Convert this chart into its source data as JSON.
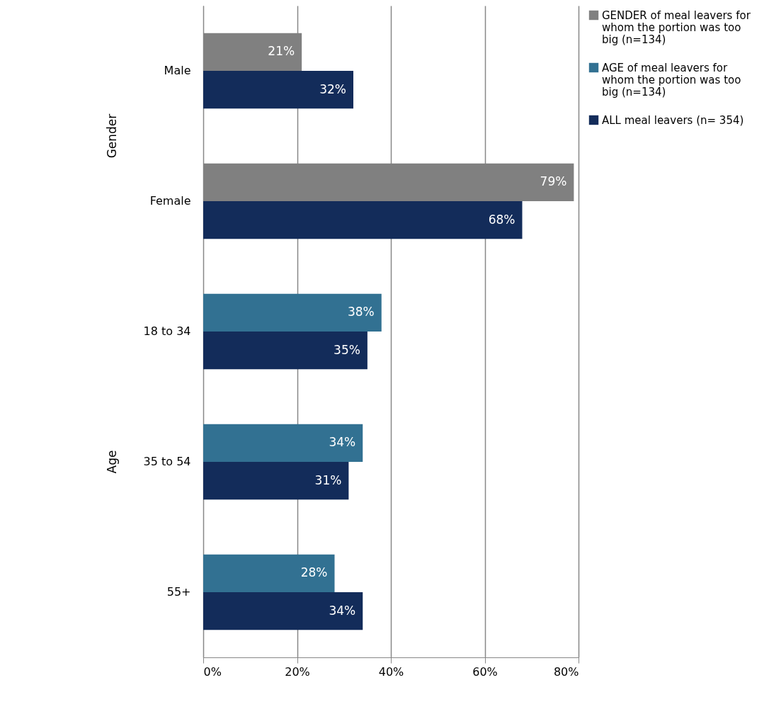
{
  "chart_data": {
    "type": "bar",
    "orientation": "horizontal",
    "categories": [
      "Male",
      "Female",
      "18 to 34",
      "35 to 54",
      "55+"
    ],
    "series": [
      {
        "name": "GENDER of meal leavers for whom the portion was too big (n=134)",
        "color": "#808080",
        "values": [
          21,
          79,
          null,
          null,
          null
        ],
        "value_labels": [
          "21%",
          "79%",
          null,
          null,
          null
        ]
      },
      {
        "name": "AGE of meal leavers for whom the portion was too big (n=134)",
        "color": "#327192",
        "values": [
          null,
          null,
          38,
          34,
          28
        ],
        "value_labels": [
          null,
          null,
          "38%",
          "34%",
          "28%"
        ]
      },
      {
        "name": "ALL meal leavers (n= 354)",
        "color": "#132c5a",
        "values": [
          32,
          68,
          35,
          31,
          34
        ],
        "value_labels": [
          "32%",
          "68%",
          "35%",
          "31%",
          "34%"
        ]
      }
    ],
    "xlim": [
      0,
      80
    ],
    "xticks": [
      {
        "value": 0,
        "label": "0%"
      },
      {
        "value": 20,
        "label": "20%"
      },
      {
        "value": 40,
        "label": "40%"
      },
      {
        "value": 60,
        "label": "60%"
      },
      {
        "value": 80,
        "label": "80%"
      }
    ],
    "grid": "x",
    "legend": "right",
    "annotations": [
      "Gender",
      "Age"
    ]
  }
}
